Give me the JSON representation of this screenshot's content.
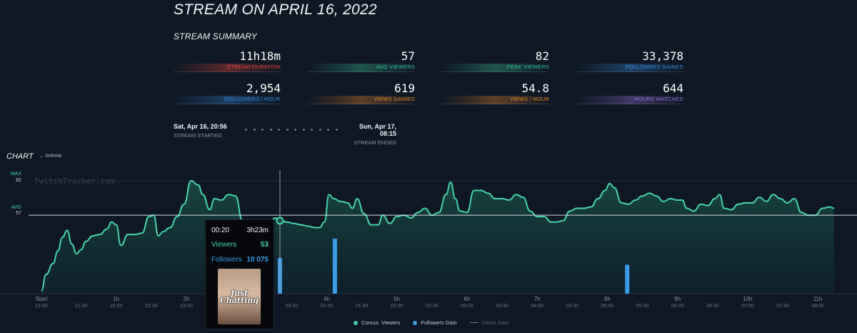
{
  "page": {
    "title": "STREAM ON APRIL 16, 2022"
  },
  "summary": {
    "title": "STREAM SUMMARY",
    "stats": [
      {
        "value": "11h18m",
        "label": "STREAM DURATION",
        "color": "#e8473f"
      },
      {
        "value": "57",
        "label": "AVG VIEWERS",
        "color": "#3fc6a0"
      },
      {
        "value": "82",
        "label": "PEAK VIEWERS",
        "color": "#3fc6a0"
      },
      {
        "value": "33,378",
        "label": "FOLLOWERS GAINED",
        "color": "#3a8de0"
      },
      {
        "value": "2,954",
        "label": "FOLLOWERS / HOUR",
        "color": "#3a8de0"
      },
      {
        "value": "619",
        "label": "VIEWS GAINED",
        "color": "#ef8a2c"
      },
      {
        "value": "54.8",
        "label": "VIEWS / HOUR",
        "color": "#ef8a2c"
      },
      {
        "value": "644",
        "label": "HOURS WATCHED",
        "color": "#9b74e0"
      }
    ]
  },
  "times": {
    "started": "Sat, Apr 16, 20:56",
    "started_label": "STREAM STARTED",
    "ended": "Sun, Apr 17, 08:15",
    "ended_label": "STREAM ENDED"
  },
  "chart_section": {
    "title": "CHART",
    "shrink_label": "SHRINK"
  },
  "tooltip": {
    "time": "00:20",
    "duration": "3h23m",
    "viewers_label": "Viewers",
    "viewers_value": "53",
    "followers_label": "Followers",
    "followers_value": "10 075",
    "art_text": "Just Chatting"
  },
  "chart_data": {
    "type": "area",
    "watermark": "TwitchTracker.com",
    "x_unit": "minutes since stream start",
    "x_range": [
      0,
      678
    ],
    "y_range": [
      0,
      82
    ],
    "max_label": "MAX",
    "max_value": "82",
    "avg_label": "AVG",
    "avg_value": "57",
    "avg": 57,
    "max": 82,
    "hover_x": 204,
    "x_ticks": [
      {
        "t": 0,
        "dur": "Start",
        "clock": "21:00"
      },
      {
        "t": 34,
        "dur": "",
        "clock": "21:30"
      },
      {
        "t": 64,
        "dur": "1h",
        "clock": "22:00"
      },
      {
        "t": 94,
        "dur": "",
        "clock": "22:30"
      },
      {
        "t": 124,
        "dur": "2h",
        "clock": "23:00"
      },
      {
        "t": 214,
        "dur": "",
        "clock": "00:30"
      },
      {
        "t": 244,
        "dur": "4h",
        "clock": "01:00"
      },
      {
        "t": 274,
        "dur": "",
        "clock": "01:30"
      },
      {
        "t": 304,
        "dur": "5h",
        "clock": "02:00"
      },
      {
        "t": 334,
        "dur": "",
        "clock": "02:30"
      },
      {
        "t": 364,
        "dur": "6h",
        "clock": "03:00"
      },
      {
        "t": 394,
        "dur": "",
        "clock": "03:30"
      },
      {
        "t": 424,
        "dur": "7h",
        "clock": "04:00"
      },
      {
        "t": 454,
        "dur": "",
        "clock": "04:30"
      },
      {
        "t": 484,
        "dur": "8h",
        "clock": "05:00"
      },
      {
        "t": 514,
        "dur": "",
        "clock": "05:30"
      },
      {
        "t": 544,
        "dur": "9h",
        "clock": "06:00"
      },
      {
        "t": 574,
        "dur": "",
        "clock": "06:30"
      },
      {
        "t": 604,
        "dur": "10h",
        "clock": "07:00"
      },
      {
        "t": 634,
        "dur": "",
        "clock": "07:30"
      },
      {
        "t": 664,
        "dur": "11h",
        "clock": "08:00"
      }
    ],
    "series": [
      {
        "name": "Concur. Viewers",
        "color": "#48d4a9",
        "points": [
          [
            0,
            2
          ],
          [
            4,
            14
          ],
          [
            10,
            22
          ],
          [
            14,
            31
          ],
          [
            18,
            41
          ],
          [
            22,
            46
          ],
          [
            26,
            36
          ],
          [
            30,
            29
          ],
          [
            34,
            32
          ],
          [
            38,
            38
          ],
          [
            44,
            42
          ],
          [
            50,
            43
          ],
          [
            56,
            47
          ],
          [
            60,
            52
          ],
          [
            64,
            50
          ],
          [
            68,
            35
          ],
          [
            74,
            43
          ],
          [
            80,
            43
          ],
          [
            86,
            44
          ],
          [
            92,
            56
          ],
          [
            96,
            57
          ],
          [
            100,
            42
          ],
          [
            104,
            45
          ],
          [
            110,
            48
          ],
          [
            116,
            56
          ],
          [
            122,
            65
          ],
          [
            128,
            82
          ],
          [
            134,
            79
          ],
          [
            138,
            72
          ],
          [
            144,
            61
          ],
          [
            148,
            69
          ],
          [
            154,
            68
          ],
          [
            160,
            72
          ],
          [
            166,
            71
          ],
          [
            172,
            53
          ],
          [
            178,
            49
          ],
          [
            182,
            43
          ],
          [
            188,
            46
          ],
          [
            194,
            49
          ],
          [
            200,
            55
          ],
          [
            204,
            53
          ],
          [
            210,
            52
          ],
          [
            216,
            51
          ],
          [
            222,
            50
          ],
          [
            228,
            49
          ],
          [
            234,
            48
          ],
          [
            238,
            48
          ],
          [
            242,
            52
          ],
          [
            246,
            72
          ],
          [
            250,
            69
          ],
          [
            256,
            67
          ],
          [
            262,
            66
          ],
          [
            266,
            62
          ],
          [
            270,
            69
          ],
          [
            276,
            58
          ],
          [
            282,
            50
          ],
          [
            288,
            50
          ],
          [
            292,
            57
          ],
          [
            298,
            51
          ],
          [
            304,
            56
          ],
          [
            310,
            57
          ],
          [
            316,
            55
          ],
          [
            322,
            59
          ],
          [
            328,
            62
          ],
          [
            334,
            57
          ],
          [
            340,
            59
          ],
          [
            346,
            72
          ],
          [
            350,
            81
          ],
          [
            354,
            69
          ],
          [
            358,
            60
          ],
          [
            364,
            59
          ],
          [
            370,
            75
          ],
          [
            376,
            75
          ],
          [
            382,
            73
          ],
          [
            388,
            69
          ],
          [
            394,
            69
          ],
          [
            400,
            68
          ],
          [
            406,
            72
          ],
          [
            412,
            70
          ],
          [
            418,
            60
          ],
          [
            424,
            56
          ],
          [
            430,
            56
          ],
          [
            436,
            52
          ],
          [
            440,
            52
          ],
          [
            446,
            53
          ],
          [
            452,
            60
          ],
          [
            458,
            62
          ],
          [
            464,
            62
          ],
          [
            470,
            63
          ],
          [
            476,
            69
          ],
          [
            482,
            75
          ],
          [
            486,
            80
          ],
          [
            490,
            77
          ],
          [
            496,
            66
          ],
          [
            502,
            65
          ],
          [
            508,
            68
          ],
          [
            514,
            71
          ],
          [
            520,
            73
          ],
          [
            526,
            71
          ],
          [
            532,
            67
          ],
          [
            538,
            69
          ],
          [
            544,
            68
          ],
          [
            548,
            68
          ],
          [
            552,
            62
          ],
          [
            558,
            60
          ],
          [
            564,
            65
          ],
          [
            570,
            64
          ],
          [
            576,
            69
          ],
          [
            580,
            72
          ],
          [
            584,
            62
          ],
          [
            590,
            61
          ],
          [
            596,
            65
          ],
          [
            602,
            66
          ],
          [
            608,
            66
          ],
          [
            614,
            70
          ],
          [
            620,
            67
          ],
          [
            626,
            72
          ],
          [
            632,
            69
          ],
          [
            638,
            66
          ],
          [
            644,
            69
          ],
          [
            650,
            59
          ],
          [
            656,
            57
          ],
          [
            662,
            57
          ],
          [
            668,
            62
          ],
          [
            674,
            63
          ],
          [
            678,
            62
          ]
        ]
      },
      {
        "name": "Followers Gain",
        "color": "#3a9be8",
        "bars": [
          [
            204,
            26
          ],
          [
            251,
            40
          ],
          [
            501,
            21
          ]
        ]
      },
      {
        "name": "Views Gain",
        "color": "#6b7685"
      }
    ]
  }
}
